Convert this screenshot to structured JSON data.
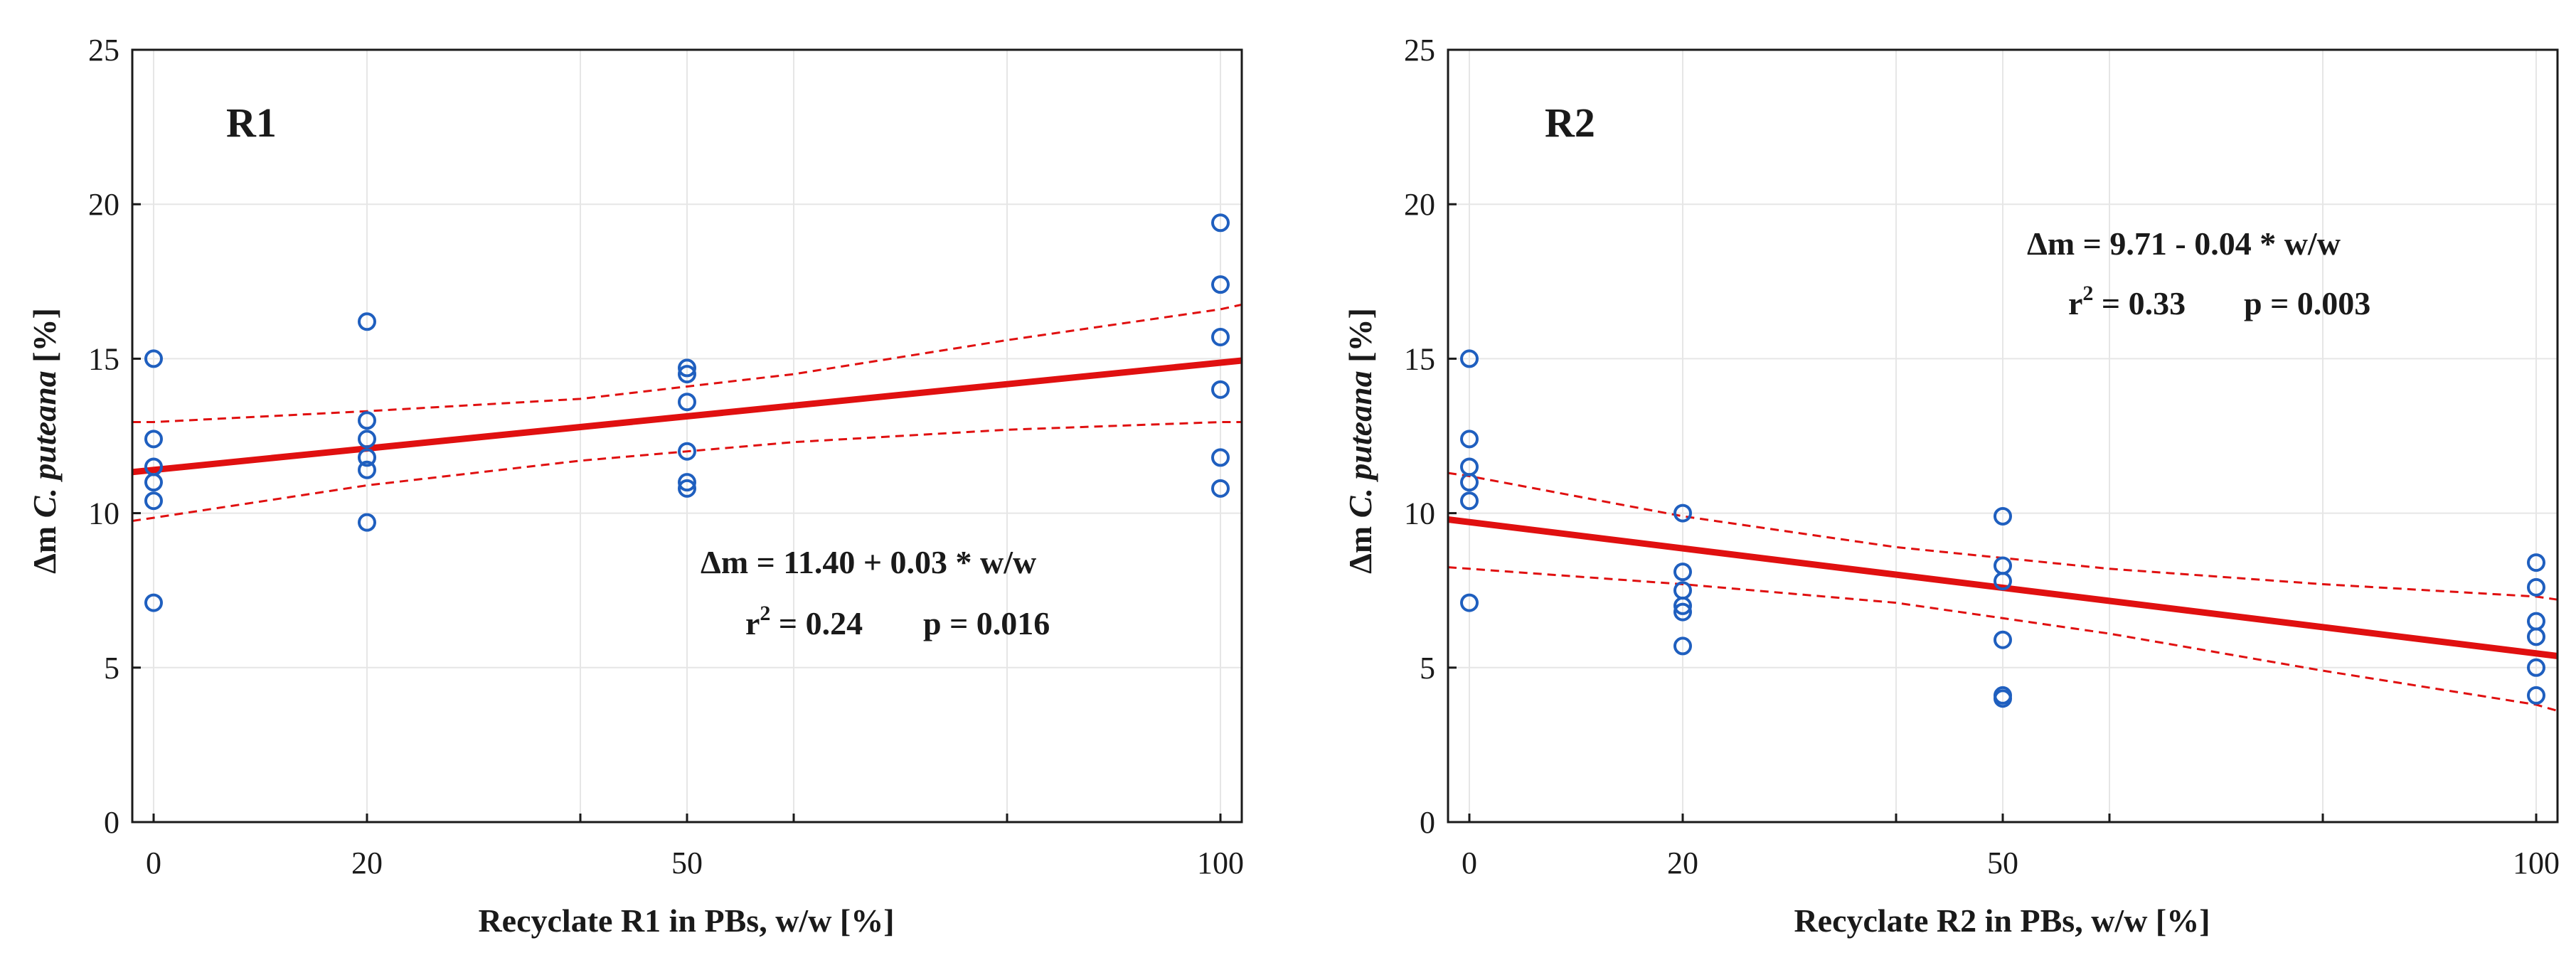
{
  "colors": {
    "points": "#1f5fbf",
    "regression": "#e01010",
    "grid": "#e6e6e6",
    "axis": "#1a1a1a"
  },
  "chart_data": [
    {
      "type": "scatter",
      "panel_label": "R1",
      "xlabel": "Recyclate R1 in PBs, w/w  [%]",
      "ylabel_prefix": "Δm ",
      "ylabel_italic": "C. puteana",
      "ylabel_suffix": " [%]",
      "xlim": [
        -2,
        102
      ],
      "ylim": [
        0,
        25
      ],
      "xticks": [
        0,
        20,
        50,
        100
      ],
      "minor_xticks": [
        40,
        60,
        80
      ],
      "yticks": [
        0,
        5,
        10,
        15,
        20,
        25
      ],
      "points": [
        {
          "x": 0,
          "y": 15.0
        },
        {
          "x": 0,
          "y": 12.4
        },
        {
          "x": 0,
          "y": 11.5
        },
        {
          "x": 0,
          "y": 11.0
        },
        {
          "x": 0,
          "y": 10.4
        },
        {
          "x": 0,
          "y": 7.1
        },
        {
          "x": 20,
          "y": 16.2
        },
        {
          "x": 20,
          "y": 13.0
        },
        {
          "x": 20,
          "y": 12.4
        },
        {
          "x": 20,
          "y": 11.8
        },
        {
          "x": 20,
          "y": 11.4
        },
        {
          "x": 20,
          "y": 9.7
        },
        {
          "x": 50,
          "y": 14.7
        },
        {
          "x": 50,
          "y": 14.5
        },
        {
          "x": 50,
          "y": 13.6
        },
        {
          "x": 50,
          "y": 12.0
        },
        {
          "x": 50,
          "y": 11.0
        },
        {
          "x": 50,
          "y": 10.8
        },
        {
          "x": 100,
          "y": 19.4
        },
        {
          "x": 100,
          "y": 17.4
        },
        {
          "x": 100,
          "y": 15.7
        },
        {
          "x": 100,
          "y": 14.0
        },
        {
          "x": 100,
          "y": 11.8
        },
        {
          "x": 100,
          "y": 10.8
        }
      ],
      "fit": {
        "intercept": 11.4,
        "slope": 0.0347
      },
      "ci_upper": [
        [
          -2,
          12.95
        ],
        [
          0,
          12.95
        ],
        [
          20,
          13.3
        ],
        [
          40,
          13.7
        ],
        [
          60,
          14.5
        ],
        [
          80,
          15.6
        ],
        [
          100,
          16.6
        ],
        [
          102,
          16.75
        ]
      ],
      "ci_lower": [
        [
          -2,
          9.75
        ],
        [
          0,
          9.85
        ],
        [
          20,
          10.9
        ],
        [
          40,
          11.7
        ],
        [
          60,
          12.3
        ],
        [
          80,
          12.7
        ],
        [
          100,
          12.95
        ],
        [
          102,
          12.95
        ]
      ],
      "equation_line1": "Δm = 11.40 + 0.03 * w/w",
      "r2_label": "r",
      "r2_sup": "2",
      "r2_value": " = 0.24",
      "p_value": "p = 0.016"
    },
    {
      "type": "scatter",
      "panel_label": "R2",
      "xlabel": "Recyclate R2 in PBs, w/w  [%]",
      "ylabel_prefix": "Δm ",
      "ylabel_italic": "C. puteana",
      "ylabel_suffix": " [%]",
      "xlim": [
        -2,
        102
      ],
      "ylim": [
        0,
        25
      ],
      "xticks": [
        0,
        20,
        50,
        100
      ],
      "minor_xticks": [
        40,
        60,
        80
      ],
      "yticks": [
        0,
        5,
        10,
        15,
        20,
        25
      ],
      "points": [
        {
          "x": 0,
          "y": 15.0
        },
        {
          "x": 0,
          "y": 12.4
        },
        {
          "x": 0,
          "y": 11.5
        },
        {
          "x": 0,
          "y": 11.0
        },
        {
          "x": 0,
          "y": 10.4
        },
        {
          "x": 0,
          "y": 7.1
        },
        {
          "x": 20,
          "y": 10.0
        },
        {
          "x": 20,
          "y": 8.1
        },
        {
          "x": 20,
          "y": 7.5
        },
        {
          "x": 20,
          "y": 7.0
        },
        {
          "x": 20,
          "y": 6.8
        },
        {
          "x": 20,
          "y": 5.7
        },
        {
          "x": 50,
          "y": 9.9
        },
        {
          "x": 50,
          "y": 8.3
        },
        {
          "x": 50,
          "y": 7.8
        },
        {
          "x": 50,
          "y": 5.9
        },
        {
          "x": 50,
          "y": 4.1
        },
        {
          "x": 50,
          "y": 4.0
        },
        {
          "x": 100,
          "y": 8.4
        },
        {
          "x": 100,
          "y": 7.6
        },
        {
          "x": 100,
          "y": 6.5
        },
        {
          "x": 100,
          "y": 6.0
        },
        {
          "x": 100,
          "y": 5.0
        },
        {
          "x": 100,
          "y": 4.1
        }
      ],
      "fit": {
        "intercept": 9.71,
        "slope": -0.0425
      },
      "ci_upper": [
        [
          -2,
          11.3
        ],
        [
          0,
          11.2
        ],
        [
          20,
          9.9
        ],
        [
          40,
          8.9
        ],
        [
          60,
          8.2
        ],
        [
          80,
          7.7
        ],
        [
          100,
          7.3
        ],
        [
          102,
          7.2
        ]
      ],
      "ci_lower": [
        [
          -2,
          8.25
        ],
        [
          0,
          8.2
        ],
        [
          20,
          7.7
        ],
        [
          40,
          7.1
        ],
        [
          60,
          6.1
        ],
        [
          80,
          4.9
        ],
        [
          100,
          3.8
        ],
        [
          102,
          3.6
        ]
      ],
      "equation_line1": "Δm = 9.71 - 0.04 * w/w",
      "r2_label": "r",
      "r2_sup": "2",
      "r2_value": " = 0.33",
      "p_value": "p = 0.003"
    }
  ]
}
